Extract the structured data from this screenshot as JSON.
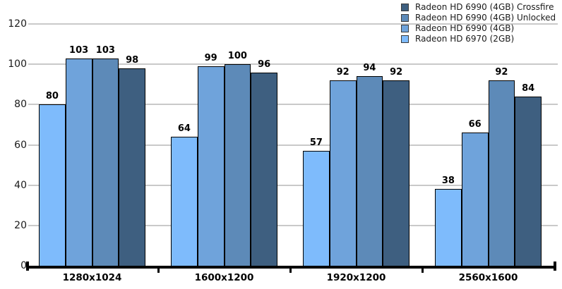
{
  "chart_data": {
    "type": "bar",
    "title": "",
    "xlabel": "",
    "ylabel": "",
    "categories": [
      "1280x1024",
      "1600x1200",
      "1920x1200",
      "2560x1600"
    ],
    "series": [
      {
        "name": "Radeon HD 6990 (4GB) Crossfire",
        "color": "#3E5F80",
        "values": [
          98,
          96,
          92,
          84
        ]
      },
      {
        "name": "Radeon HD 6990 (4GB) Unlocked",
        "color": "#5D8AB8",
        "values": [
          103,
          100,
          94,
          92
        ]
      },
      {
        "name": "Radeon HD 6990 (4GB)",
        "color": "#6FA3DB",
        "values": [
          103,
          99,
          92,
          66
        ]
      },
      {
        "name": "Radeon HD 6970 (2GB)",
        "color": "#7EBBFC",
        "values": [
          80,
          64,
          57,
          38
        ]
      }
    ],
    "bar_draw_order": "reverse of legend order (lightest series leftmost in each group)",
    "value_labels_shown": true,
    "ylim": [
      0,
      120
    ],
    "yticks": [
      0,
      20,
      40,
      60,
      80,
      100,
      120
    ],
    "grid": "horizontal",
    "legend_position": "top-right"
  },
  "colors": {
    "background": "#FFFFFF",
    "gridline": "#C9C9C9",
    "axis": "#000000",
    "bar_border": "#000000",
    "text": "#1A1A1A"
  }
}
